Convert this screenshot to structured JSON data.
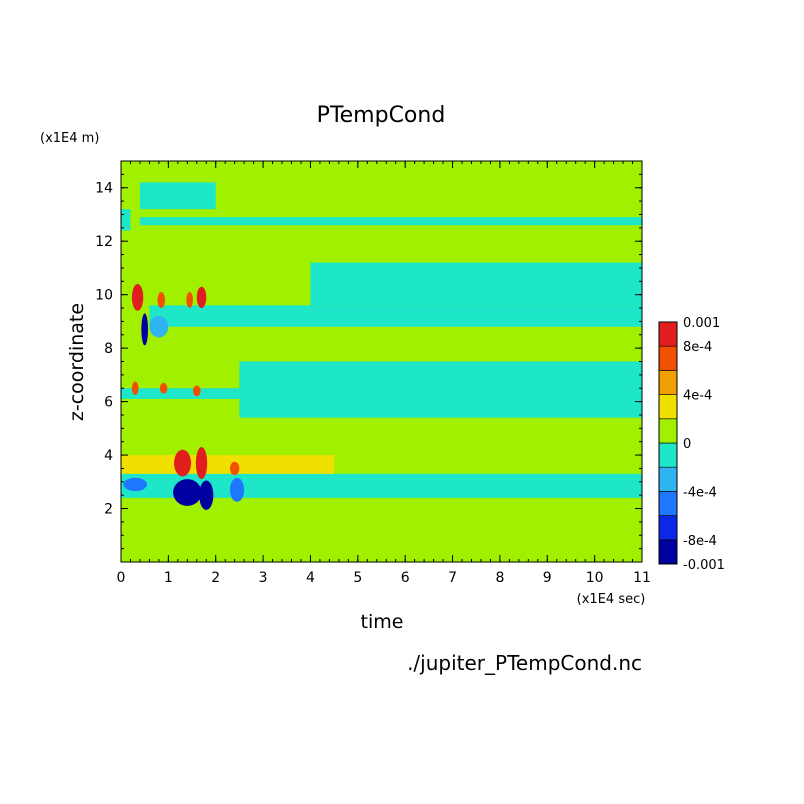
{
  "chart_data": {
    "type": "heatmap",
    "title": "PTempCond",
    "xlabel": "time",
    "ylabel": "z-coordinate",
    "x_unit": "(x1E4 sec)",
    "y_unit": "(x1E4 m)",
    "footer": "./jupiter_PTempCond.nc",
    "xlim": [
      0,
      11
    ],
    "ylim": [
      0,
      15
    ],
    "x_ticks": [
      0,
      1,
      2,
      3,
      4,
      5,
      6,
      7,
      8,
      9,
      10,
      11
    ],
    "y_ticks": [
      2,
      4,
      6,
      8,
      10,
      12,
      14
    ],
    "colorbar": {
      "levels": [
        -0.001,
        -0.0008,
        -0.0006,
        -0.0004,
        -0.0002,
        0,
        0.0002,
        0.0004,
        0.0006,
        0.0008,
        0.001
      ],
      "colors": [
        "#0000a0",
        "#0a28e6",
        "#1e78ff",
        "#2eb4f0",
        "#1ee6c8",
        "#a0f000",
        "#f0e000",
        "#f0a000",
        "#f05000",
        "#e01e1e"
      ],
      "labels": [
        "0.001",
        "8e-4",
        "4e-4",
        "0",
        "-4e-4",
        "-8e-4",
        "-0.001"
      ]
    },
    "background_value": 0.0001,
    "bands": [
      {
        "t": [
          0.0,
          11.0
        ],
        "z": [
          2.4,
          3.4
        ],
        "value": -0.0001
      },
      {
        "t": [
          0.0,
          11.0
        ],
        "z": [
          3.3,
          3.45
        ],
        "value": 0.0001
      },
      {
        "t": [
          0.0,
          11.0
        ],
        "z": [
          6.1,
          6.5
        ],
        "value": -0.0001
      },
      {
        "t": [
          2.5,
          11.0
        ],
        "z": [
          5.4,
          7.5
        ],
        "value": -0.0001
      },
      {
        "t": [
          0.6,
          11.0
        ],
        "z": [
          8.8,
          9.6
        ],
        "value": -0.0001
      },
      {
        "t": [
          4.0,
          11.0
        ],
        "z": [
          9.6,
          11.2
        ],
        "value": -0.0001
      },
      {
        "t": [
          0.4,
          11.0
        ],
        "z": [
          12.6,
          12.9
        ],
        "value": -0.0001
      },
      {
        "t": [
          0.4,
          2.0
        ],
        "z": [
          13.2,
          14.2
        ],
        "value": -0.0001
      },
      {
        "t": [
          0.0,
          0.2
        ],
        "z": [
          12.4,
          13.2
        ],
        "value": -0.0001
      },
      {
        "t": [
          0.0,
          4.5
        ],
        "z": [
          3.3,
          4.0
        ],
        "value": 0.0002
      }
    ],
    "spots": [
      {
        "t": 0.35,
        "z": 9.9,
        "rt": 0.12,
        "rz": 0.5,
        "value": 0.0009
      },
      {
        "t": 0.85,
        "z": 9.8,
        "rt": 0.08,
        "rz": 0.3,
        "value": 0.0007
      },
      {
        "t": 1.45,
        "z": 9.8,
        "rt": 0.07,
        "rz": 0.3,
        "value": 0.0007
      },
      {
        "t": 1.7,
        "z": 9.9,
        "rt": 0.1,
        "rz": 0.4,
        "value": 0.0009
      },
      {
        "t": 0.5,
        "z": 8.7,
        "rt": 0.07,
        "rz": 0.6,
        "value": -0.0009
      },
      {
        "t": 0.3,
        "z": 6.5,
        "rt": 0.07,
        "rz": 0.25,
        "value": 0.0006
      },
      {
        "t": 0.9,
        "z": 6.5,
        "rt": 0.08,
        "rz": 0.2,
        "value": 0.0006
      },
      {
        "t": 1.6,
        "z": 6.4,
        "rt": 0.08,
        "rz": 0.2,
        "value": 0.0006
      },
      {
        "t": 1.3,
        "z": 3.7,
        "rt": 0.18,
        "rz": 0.5,
        "value": 0.0009
      },
      {
        "t": 1.7,
        "z": 3.7,
        "rt": 0.12,
        "rz": 0.6,
        "value": 0.0009
      },
      {
        "t": 2.4,
        "z": 3.5,
        "rt": 0.1,
        "rz": 0.25,
        "value": 0.0006
      },
      {
        "t": 0.3,
        "z": 2.9,
        "rt": 0.25,
        "rz": 0.25,
        "value": -0.0006
      },
      {
        "t": 1.4,
        "z": 2.6,
        "rt": 0.3,
        "rz": 0.5,
        "value": -0.0009
      },
      {
        "t": 1.8,
        "z": 2.5,
        "rt": 0.15,
        "rz": 0.55,
        "value": -0.0009
      },
      {
        "t": 2.45,
        "z": 2.7,
        "rt": 0.15,
        "rz": 0.45,
        "value": -0.0005
      },
      {
        "t": 0.8,
        "z": 8.8,
        "rt": 0.2,
        "rz": 0.4,
        "value": -0.0004
      }
    ]
  }
}
